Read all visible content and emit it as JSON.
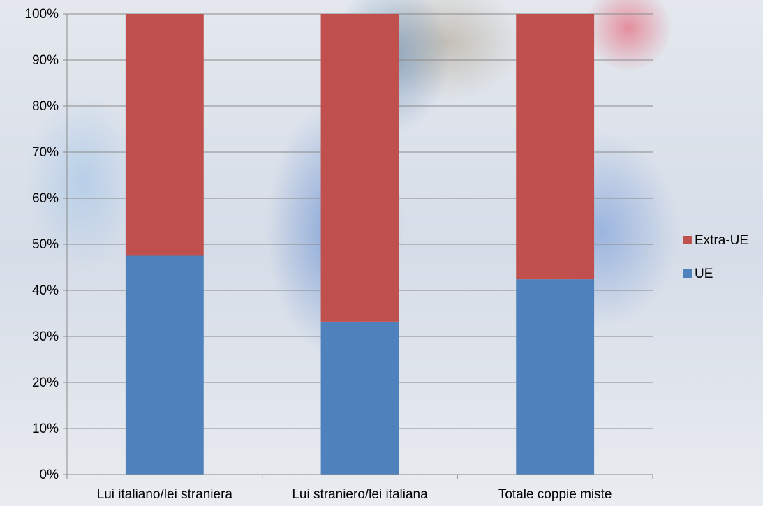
{
  "chart_data": {
    "type": "bar",
    "stacked": true,
    "percent": true,
    "categories": [
      "Lui italiano/lei straniera",
      "Lui straniero/lei italiana",
      "Totale coppie miste"
    ],
    "series": [
      {
        "name": "UE",
        "color": "#4f81bd",
        "values": [
          47.5,
          33.2,
          42.4
        ]
      },
      {
        "name": "Extra-UE",
        "color": "#c0504d",
        "values": [
          52.5,
          66.8,
          57.6
        ]
      }
    ],
    "y_ticks": [
      "0%",
      "10%",
      "20%",
      "30%",
      "40%",
      "50%",
      "60%",
      "70%",
      "80%",
      "90%",
      "100%"
    ],
    "ylim": [
      0,
      100
    ],
    "grid": true,
    "legend_position": "right",
    "legend_order": [
      "Extra-UE",
      "UE"
    ],
    "title": "",
    "xlabel": "",
    "ylabel": ""
  }
}
